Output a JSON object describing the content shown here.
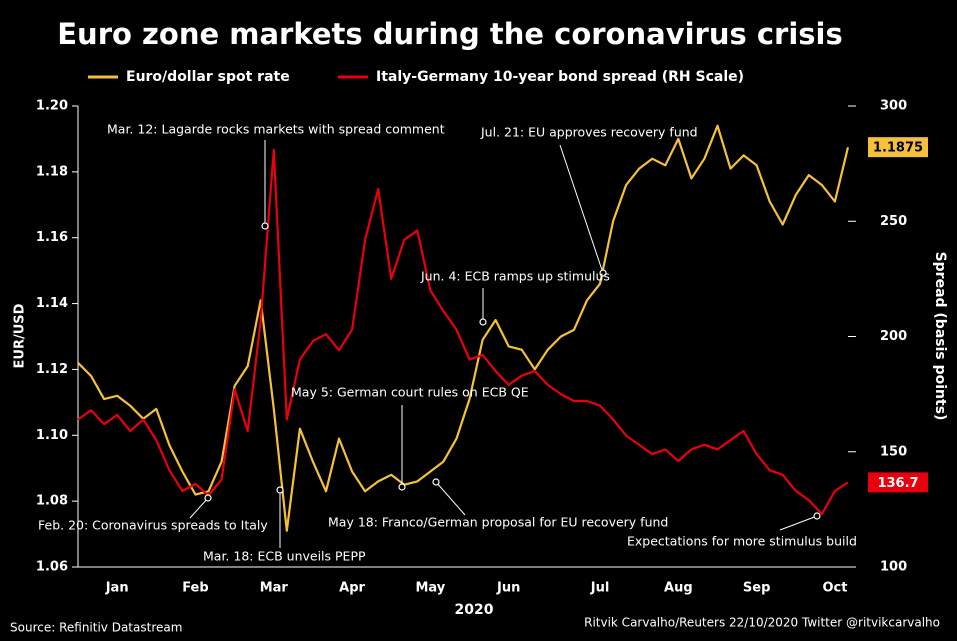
{
  "chart_data": {
    "type": "line",
    "title": "Euro zone markets during the coronavirus crisis",
    "x_label": "2020",
    "y_label": "EUR/USD",
    "y2_label": "Spread (basis points)",
    "source": "Source: Refinitiv Datastream",
    "credit": "Ritvik Carvalho/Reuters 22/10/2020 Twitter @ritvikcarvalho",
    "categories": [
      null,
      null,
      null,
      "Jan",
      null,
      null,
      null,
      null,
      null,
      "Feb",
      null,
      null,
      null,
      null,
      null,
      "Mar",
      null,
      null,
      null,
      null,
      null,
      "Apr",
      null,
      null,
      null,
      null,
      null,
      "May",
      null,
      null,
      null,
      null,
      null,
      "Jun",
      null,
      null,
      null,
      null,
      null,
      null,
      "Jul",
      null,
      null,
      null,
      null,
      null,
      "Aug",
      null,
      null,
      null,
      null,
      null,
      "Sep",
      null,
      null,
      null,
      null,
      null,
      "Oct",
      null
    ],
    "series": [
      {
        "name": "Euro/dollar spot rate",
        "color": "#f5c13b",
        "values": [
          1.122,
          1.118,
          1.111,
          1.112,
          1.109,
          1.105,
          1.108,
          1.097,
          1.089,
          1.082,
          1.083,
          1.092,
          1.115,
          1.121,
          1.141,
          1.108,
          1.071,
          1.102,
          1.092,
          1.083,
          1.099,
          1.089,
          1.083,
          1.086,
          1.088,
          1.085,
          1.086,
          1.089,
          1.092,
          1.099,
          1.111,
          1.129,
          1.135,
          1.127,
          1.126,
          1.12,
          1.126,
          1.13,
          1.132,
          1.141,
          1.146,
          1.165,
          1.176,
          1.181,
          1.184,
          1.182,
          1.19,
          1.178,
          1.184,
          1.194,
          1.181,
          1.185,
          1.182,
          1.171,
          1.164,
          1.173,
          1.179,
          1.176,
          1.171,
          1.1875
        ]
      },
      {
        "name": "Italy-Germany 10-year bond spread (RH Scale)",
        "color": "#e8000f",
        "axis": "y2",
        "values": [
          164,
          168,
          162,
          166,
          159,
          164,
          155,
          142,
          133,
          136,
          131,
          138,
          177,
          159,
          207,
          281,
          164,
          190,
          198,
          201,
          194,
          203,
          242,
          264,
          225,
          242,
          246,
          220,
          211,
          203,
          190,
          192,
          185,
          179,
          183,
          185,
          179,
          175,
          172,
          172,
          170,
          164,
          157,
          153,
          149,
          151,
          146,
          151,
          153,
          151,
          155,
          159,
          149,
          142,
          140,
          133,
          129,
          123,
          133,
          136.7
        ]
      }
    ],
    "ylim": [
      1.06,
      1.2
    ],
    "yticks": [
      1.06,
      1.08,
      {
        "value": 1.1,
        "label": "1.10"
      },
      1.12,
      1.14,
      1.16,
      1.18,
      {
        "value": 1.2,
        "label": "1.20"
      }
    ],
    "y2lim": [
      100,
      300
    ],
    "y2ticks": [
      100,
      150,
      200,
      250,
      300
    ],
    "annotations": [
      "Mar. 12: Lagarde rocks markets with spread comment",
      "Jul. 21: EU approves recovery fund",
      "Jun. 4: ECB ramps up stimulus",
      "May 5: German court rules on ECB QE",
      "Feb. 20: Coronavirus spreads to Italy",
      "Mar. 18: ECB unveils PEPP",
      "May 18: Franco/German proposal for EU recovery fund",
      "Expectations for more stimulus build"
    ]
  }
}
